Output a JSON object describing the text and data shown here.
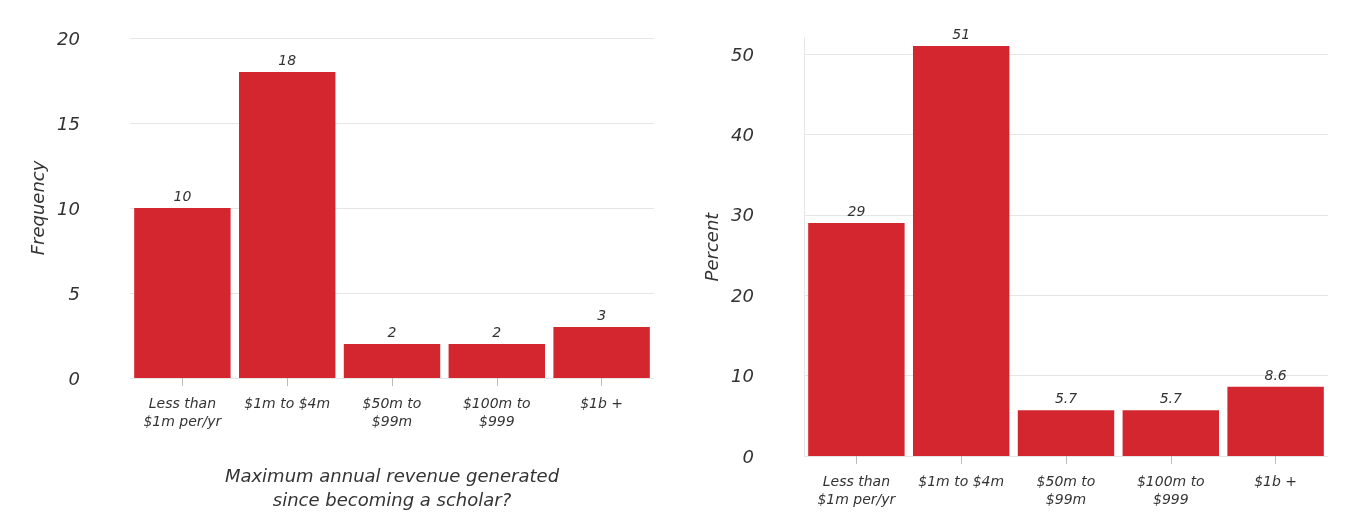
{
  "chart_data": [
    {
      "type": "bar",
      "ylabel": "Frequency",
      "xlabel": "Maximum annual revenue generated\nsince becoming a scholar?",
      "categories": [
        "Less than\n$1m per/yr",
        "$1m to $4m",
        "$50m to\n$99m",
        "$100m to\n$999",
        "$1b +"
      ],
      "values": [
        10,
        18,
        2,
        2,
        3
      ],
      "color": "#d3262f",
      "ylim": [
        0,
        20
      ],
      "yticks": [
        0,
        5,
        10,
        15,
        20
      ],
      "grid": "y",
      "data_labels": true
    },
    {
      "type": "bar",
      "ylabel": "Percent",
      "categories": [
        "Less than\n$1m per/yr",
        "$1m to $4m",
        "$50m to\n$99m",
        "$100m to\n$999",
        "$1b +"
      ],
      "values": [
        29,
        51,
        5.7,
        5.7,
        8.6
      ],
      "color": "#d3262f",
      "ylim": [
        0,
        52
      ],
      "yticks": [
        0,
        10,
        20,
        30,
        40,
        50
      ],
      "grid": "y",
      "data_labels": true
    }
  ]
}
